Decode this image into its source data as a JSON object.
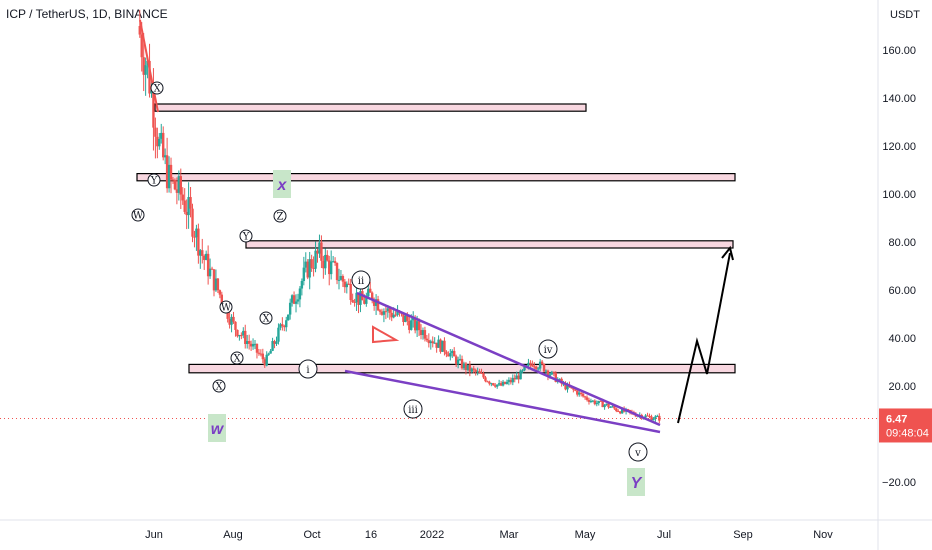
{
  "header": {
    "symbol_title": "ICP / TetherUS, 1D, BINANCE"
  },
  "price_axis": {
    "currency": "USDT",
    "last_price": "6.47",
    "countdown": "09:48:04"
  },
  "colors": {
    "up": "#26a69a",
    "down": "#ef5350",
    "zone_fill": "#f8d7e0",
    "trendline": "#7b3fc4",
    "projection": "#000000",
    "label_box": "#c8e6c9",
    "label_text": "#7b3fc4",
    "last_price_bg": "#ef5350"
  },
  "chart_data": {
    "type": "candlestick",
    "y_ticks": [
      160,
      140,
      120,
      100,
      80,
      60,
      40,
      20,
      -20
    ],
    "x_ticks": [
      "Jun",
      "Aug",
      "Oct",
      "16",
      "2022",
      "Mar",
      "May",
      "Jul",
      "Sep",
      "Nov"
    ],
    "ylim": [
      -30,
      170
    ],
    "zones": [
      {
        "top": 137.5,
        "bottom": 134.5,
        "start": "May 2021",
        "end": "Jun 2022"
      },
      {
        "top": 108.5,
        "bottom": 105.5,
        "start": "May 2021",
        "end": "Oct 2022"
      },
      {
        "top": 80.5,
        "bottom": 77.5,
        "start": "Aug 2021",
        "end": "Oct 2022"
      },
      {
        "top": 29,
        "bottom": 25.5,
        "start": "Jun 2021",
        "end": "Oct 2022"
      }
    ],
    "wave_labels": [
      "W",
      "X",
      "Y",
      "X",
      "W",
      "X",
      "Y",
      "Z",
      "X",
      "i",
      "ii",
      "iii",
      "iv",
      "v",
      "W",
      "X",
      "Y"
    ],
    "label_texts": [
      "w",
      "x",
      "Y"
    ],
    "price_path_trace": [
      [
        0,
        170
      ],
      [
        3,
        150
      ],
      [
        6,
        120
      ],
      [
        9,
        105
      ],
      [
        12,
        100
      ],
      [
        15,
        90
      ],
      [
        18,
        75
      ],
      [
        21,
        65
      ],
      [
        24,
        55
      ],
      [
        27,
        45
      ],
      [
        30,
        40
      ],
      [
        33,
        35
      ],
      [
        36,
        30
      ],
      [
        39,
        40
      ],
      [
        42,
        50
      ],
      [
        45,
        60
      ],
      [
        48,
        70
      ],
      [
        51,
        75
      ],
      [
        54,
        70
      ],
      [
        57,
        65
      ],
      [
        60,
        60
      ],
      [
        63,
        55
      ],
      [
        66,
        58
      ],
      [
        69,
        52
      ],
      [
        72,
        50
      ],
      [
        75,
        48
      ],
      [
        78,
        45
      ],
      [
        81,
        42
      ],
      [
        84,
        38
      ],
      [
        87,
        35
      ],
      [
        90,
        30
      ],
      [
        93,
        27
      ],
      [
        96,
        25
      ],
      [
        99,
        22
      ],
      [
        102,
        20
      ],
      [
        105,
        22
      ],
      [
        108,
        25
      ],
      [
        111,
        30
      ],
      [
        114,
        28
      ],
      [
        117,
        24
      ],
      [
        120,
        20
      ],
      [
        123,
        18
      ],
      [
        126,
        15
      ],
      [
        129,
        13
      ],
      [
        132,
        12
      ],
      [
        135,
        10
      ],
      [
        138,
        9
      ],
      [
        141,
        8
      ],
      [
        144,
        7
      ],
      [
        147,
        6.5
      ]
    ],
    "projection_path": [
      [
        147,
        6.5
      ],
      [
        155,
        40
      ],
      [
        160,
        25
      ],
      [
        168,
        78
      ]
    ],
    "trendlines": [
      {
        "from": [
          80,
          58
        ],
        "to": [
          147,
          6
        ]
      },
      {
        "from": [
          65,
          28
        ],
        "to": [
          147,
          2
        ]
      }
    ]
  }
}
